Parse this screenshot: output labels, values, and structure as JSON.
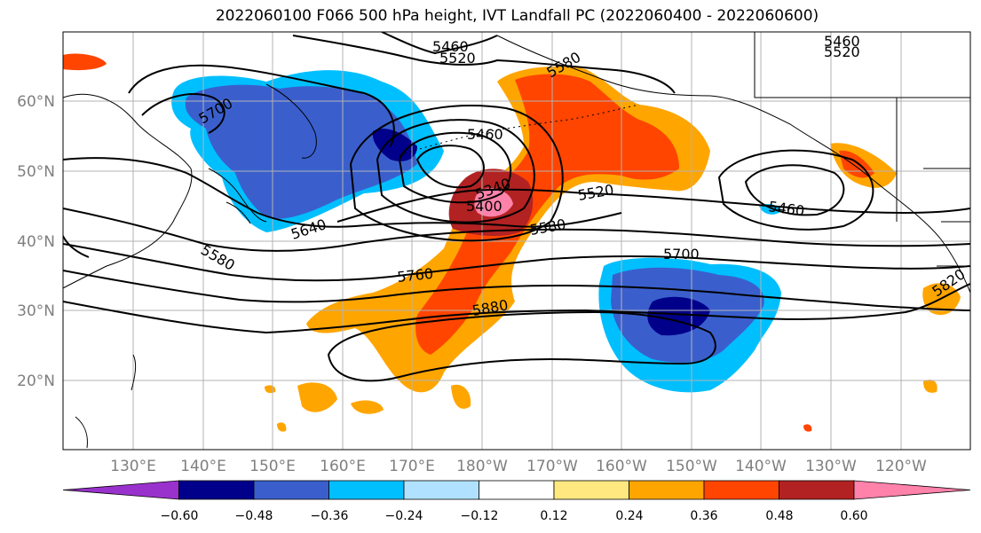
{
  "title": "2022060100 F066 500 hPa height, IVT Landfall PC (2022060400 - 2022060600)",
  "lat_labels": [
    "60°N",
    "50°N",
    "40°N",
    "30°N",
    "20°N"
  ],
  "lon_labels": [
    "130°E",
    "140°E",
    "150°E",
    "160°E",
    "170°E",
    "180°W",
    "170°W",
    "160°W",
    "150°W",
    "140°W",
    "130°W",
    "120°W"
  ],
  "contour_labels": [
    "5460",
    "5520",
    "5580",
    "5460",
    "5520",
    "5700",
    "5460",
    "5340",
    "5400",
    "5520",
    "5580",
    "5640",
    "5580",
    "5460",
    "5700",
    "5760",
    "5880",
    "5820"
  ],
  "colorbar": {
    "ticks": [
      "−0.60",
      "−0.48",
      "−0.36",
      "−0.24",
      "−0.12",
      "0.12",
      "0.24",
      "0.36",
      "0.48",
      "0.60"
    ],
    "colors": [
      "#9932cc",
      "#00008b",
      "#3a5fcd",
      "#00bfff",
      "#b0e2ff",
      "#ffffff",
      "#ffe880",
      "#ffa500",
      "#ff4500",
      "#b22222",
      "#ff82ab"
    ]
  },
  "field_colors": {
    "neg_light": "#00bfff",
    "neg_mid": "#3a5fcd",
    "neg_deep": "#00008b",
    "pos_light": "#ffa500",
    "pos_mid": "#ff4500",
    "pos_deep": "#b22222",
    "pos_max": "#ff82ab",
    "pos_faint": "#ffe880",
    "neg_faint": "#b0e2ff"
  }
}
